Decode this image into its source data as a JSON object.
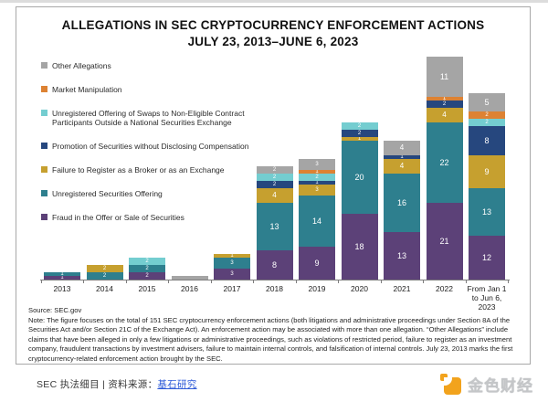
{
  "header": {
    "title_line1": "ALLEGATIONS IN SEC CRYPTOCURRENCY ENFORCEMENT ACTIONS",
    "title_line2": "JULY 23, 2013–JUNE 6, 2023"
  },
  "legend": {
    "position": "left",
    "items": [
      {
        "label": "Other Allegations",
        "color": "#a5a5a5"
      },
      {
        "label": "Market Manipulation",
        "color": "#dd8233"
      },
      {
        "label": "Unregistered Offering of Swaps to Non-Eligible Contract Participants Outside a National Securities Exchange",
        "color": "#74cdd0"
      },
      {
        "label": "Promotion of Securities without Disclosing Compensation",
        "color": "#26477e"
      },
      {
        "label": "Failure to Register as a Broker or as an Exchange",
        "color": "#c6a02f"
      },
      {
        "label": "Unregistered Securities Offering",
        "color": "#2e7f8e"
      },
      {
        "label": "Fraud in the Offer or Sale of Securities",
        "color": "#5c4178"
      }
    ]
  },
  "chart_data": {
    "type": "bar",
    "stacked": true,
    "title": "ALLEGATIONS IN SEC CRYPTOCURRENCY ENFORCEMENT ACTIONS JULY 23, 2013–JUNE 6, 2023",
    "xlabel": "",
    "ylabel": "",
    "grid": false,
    "legend_position": "left",
    "categories": [
      "2013",
      "2014",
      "2015",
      "2016",
      "2017",
      "2018",
      "2019",
      "2020",
      "2021",
      "2022",
      "From Jan 1 to Jun 6, 2023"
    ],
    "category_display": [
      "2013",
      "2014",
      "2015",
      "2016",
      "2017",
      "2018",
      "2019",
      "2020",
      "2021",
      "2022",
      "From Jan 1\nto Jun 6,\n2023"
    ],
    "series": [
      {
        "name": "Fraud in the Offer or Sale of Securities",
        "color": "#5c4178",
        "values": [
          1,
          0,
          2,
          0,
          3,
          8,
          9,
          18,
          13,
          21,
          12
        ]
      },
      {
        "name": "Unregistered Securities Offering",
        "color": "#2e7f8e",
        "values": [
          1,
          2,
          2,
          0,
          3,
          13,
          14,
          20,
          16,
          22,
          13
        ]
      },
      {
        "name": "Failure to Register as a Broker or as an Exchange",
        "color": "#c6a02f",
        "values": [
          0,
          2,
          0,
          0,
          1,
          4,
          3,
          1,
          4,
          4,
          9
        ]
      },
      {
        "name": "Promotion of Securities without Disclosing Compensation",
        "color": "#26477e",
        "values": [
          0,
          0,
          0,
          0,
          0,
          2,
          1,
          2,
          1,
          2,
          8
        ]
      },
      {
        "name": "Unregistered Offering of Swaps to Non-Eligible Contract Participants Outside a National Securities Exchange",
        "color": "#74cdd0",
        "values": [
          0,
          0,
          2,
          0,
          0,
          2,
          2,
          2,
          0,
          0,
          2
        ]
      },
      {
        "name": "Market Manipulation",
        "color": "#dd8233",
        "values": [
          0,
          0,
          0,
          0,
          0,
          0,
          1,
          0,
          0,
          1,
          2
        ]
      },
      {
        "name": "Other Allegations",
        "color": "#a5a5a5",
        "values": [
          0,
          0,
          0,
          1,
          0,
          2,
          3,
          0,
          4,
          11,
          5
        ]
      }
    ],
    "totals": [
      2,
      4,
      6,
      1,
      7,
      31,
      33,
      43,
      38,
      61,
      51
    ],
    "value_labels_shown": true,
    "label_exceptions": [
      "2016"
    ]
  },
  "footnote": {
    "source": "Source: SEC.gov",
    "note": "Note: The figure focuses on the total of 151 SEC cryptocurrency enforcement actions (both litigations and administrative proceedings under Section 8A of the Securities Act and/or Section 21C of the Exchange Act). An enforcement action may be associated with more than one allegation. “Other Allegations” include claims that have been alleged in only a few litigations or administrative proceedings, such as violations of restricted period, failure to register as an investment company, fraudulent transactions by investment advisers, failure to maintain internal controls, and falsification of internal controls. July 23, 2013 marks the first cryptocurrency-related enforcement action brought by the SEC."
  },
  "footer": {
    "left_text": "SEC 执法细目 | 资料来源：",
    "link_text": "基石研究",
    "brand_text": "金色财经"
  }
}
